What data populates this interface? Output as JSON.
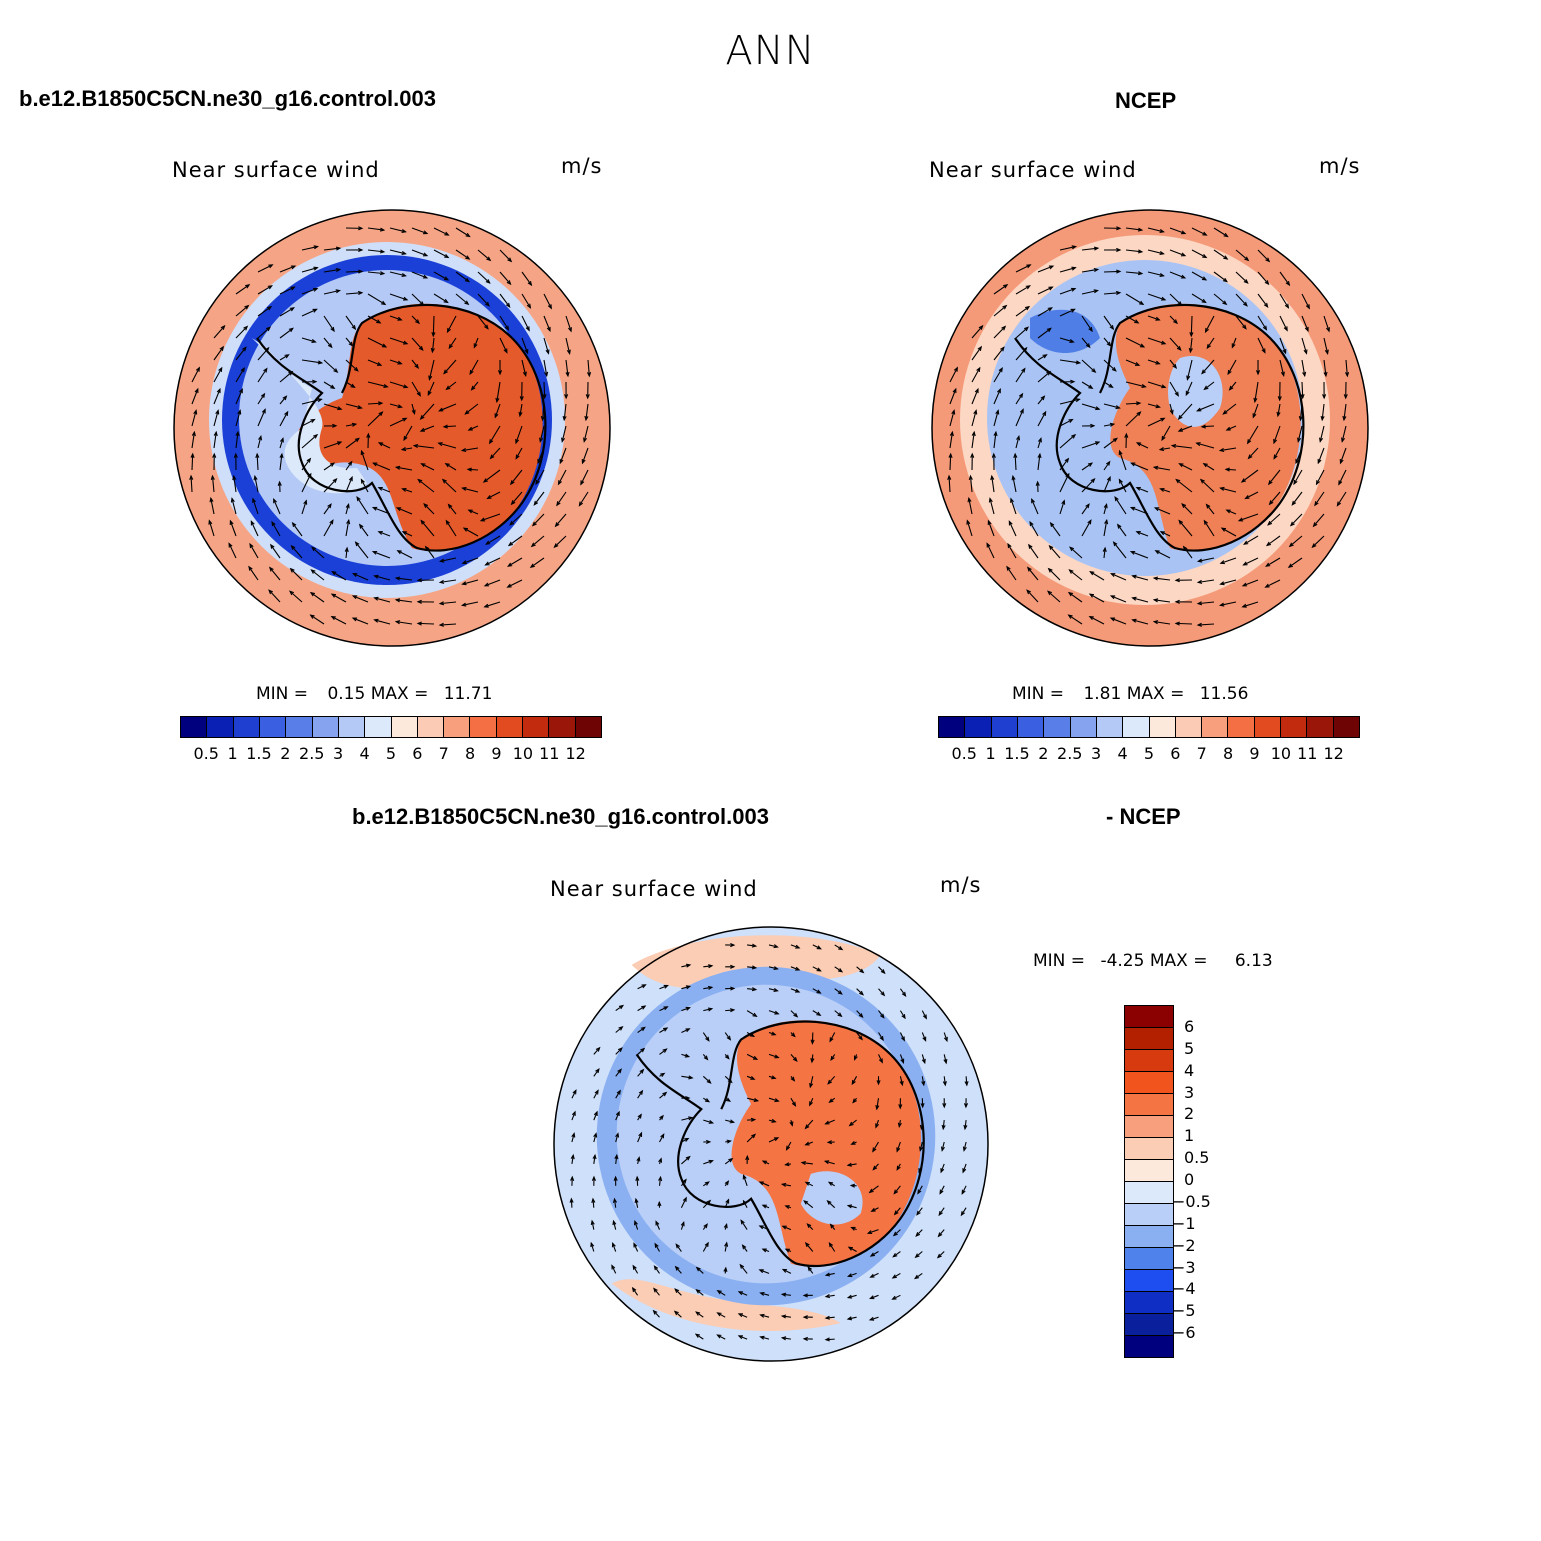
{
  "page": {
    "title": "ANN",
    "panel_a_case": "b.e12.B1850C5CN.ne30_g16.control.003",
    "panel_b_case": "NCEP",
    "diff_case_left": "b.e12.B1850C5CN.ne30_g16.control.003",
    "diff_case_right": "- NCEP"
  },
  "maps": [
    {
      "variable": "Near surface wind",
      "units": "m/s",
      "min_label": "MIN =",
      "min_value": "0.15",
      "max_label": "MAX =",
      "max_value": "11.71",
      "contour_levels": [
        "0.5",
        "1",
        "1.5",
        "2",
        "2.5",
        "3",
        "4",
        "5",
        "6",
        "7",
        "8",
        "9",
        "10",
        "11",
        "12"
      ],
      "color_scale": [
        "#00007f",
        "#0a1fb4",
        "#1f3fd1",
        "#3a5fe0",
        "#5a7ee8",
        "#86a3f0",
        "#b4c9f6",
        "#dce9fa",
        "#fde8dc",
        "#fccbb5",
        "#f8a07e",
        "#f56f45",
        "#e24a1f",
        "#c22b0d",
        "#9a1608",
        "#6e0404"
      ],
      "fields": {
        "ocean_ring": "#f5a585",
        "mid_ring": "#1a40d8",
        "inner_ring": "#b4c9f6",
        "continent": "#e55a2b"
      }
    },
    {
      "variable": "Near surface wind",
      "units": "m/s",
      "min_label": "MIN =",
      "min_value": "1.81",
      "max_label": "MAX =",
      "max_value": "11.56",
      "contour_levels": [
        "0.5",
        "1",
        "1.5",
        "2",
        "2.5",
        "3",
        "4",
        "5",
        "6",
        "7",
        "8",
        "9",
        "10",
        "11",
        "12"
      ],
      "color_scale": [
        "#00007f",
        "#0a1fb4",
        "#1f3fd1",
        "#3a5fe0",
        "#5a7ee8",
        "#86a3f0",
        "#b4c9f6",
        "#dce9fa",
        "#fde8dc",
        "#fccbb5",
        "#f8a07e",
        "#f56f45",
        "#e24a1f",
        "#c22b0d",
        "#9a1608",
        "#6e0404"
      ],
      "fields": {
        "ocean_ring": "#f59a78",
        "mid_ring": "#fcd7c4",
        "inner_ring": "#a9c4f4",
        "continent": "#f08055"
      }
    },
    {
      "variable": "Near surface wind",
      "units": "m/s",
      "min_label": "MIN =",
      "min_value": "-4.25",
      "max_label": "MAX =",
      "max_value": "6.13",
      "contour_levels": [
        "6",
        "5",
        "4",
        "3",
        "2",
        "1",
        "0.5",
        "0",
        "-0.5",
        "-1",
        "-2",
        "-3",
        "-4",
        "-5",
        "-6"
      ],
      "color_scale": [
        "#8b0000",
        "#b22000",
        "#d83a10",
        "#f2541e",
        "#f47444",
        "#f8a07e",
        "#fbcdb4",
        "#fde8dc",
        "#dce9fa",
        "#b9cff8",
        "#8ab0f2",
        "#4f82ea",
        "#1f4ef0",
        "#0f2fc4",
        "#0a1f9c",
        "#00007f"
      ],
      "fields": {
        "ocean_ring": "#cfe0fa",
        "mid_ring": "#8ab0f2",
        "inner_ring": "#b9cff8",
        "continent": "#f47444"
      }
    }
  ]
}
